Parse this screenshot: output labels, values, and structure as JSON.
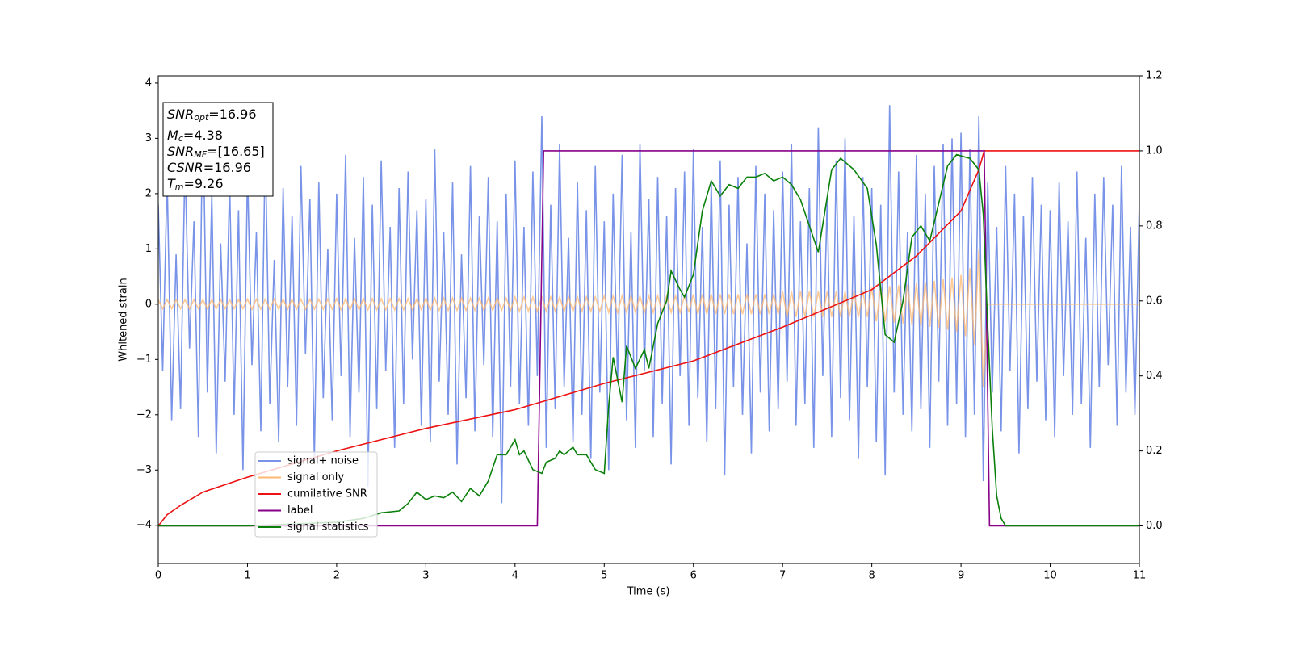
{
  "chart_data": {
    "type": "line",
    "xlabel": "Time (s)",
    "ylabel": "Whitened strain",
    "xlim": [
      0,
      11
    ],
    "ylim": [
      -4.69,
      4.13
    ],
    "y2lim": [
      -0.1,
      1.2
    ],
    "xticks": [
      0,
      1,
      2,
      3,
      4,
      5,
      6,
      7,
      8,
      9,
      10,
      11
    ],
    "yticks": [
      {
        "value": -4,
        "label": "−4"
      },
      {
        "value": -3,
        "label": "−3"
      },
      {
        "value": -2,
        "label": "−2"
      },
      {
        "value": -1,
        "label": "−1"
      },
      0,
      1,
      2,
      3,
      4
    ],
    "y2ticks": [
      {
        "value": 0,
        "label": "0.0"
      },
      0.2,
      0.4,
      0.6,
      0.8,
      {
        "value": 1,
        "label": "1.0"
      },
      1.2
    ],
    "legend": "lower left",
    "annotations": [
      {
        "symbol": "SNR",
        "sub": "opt",
        "text": "=16.96"
      },
      {
        "symbol": "M",
        "sub": "c",
        "text": "=4.38"
      },
      {
        "symbol": "SNR",
        "sub": "MF",
        "text": "=[16.65]"
      },
      {
        "symbol": "CSNR",
        "text": "=16.96"
      },
      {
        "symbol": "T",
        "sub": "m",
        "text": "=9.26"
      }
    ],
    "x": [
      0,
      0.05,
      0.1,
      0.15,
      0.2,
      0.25,
      0.3,
      0.35,
      0.4,
      0.45,
      0.5,
      0.55,
      0.6,
      0.65,
      0.7,
      0.75,
      0.8,
      0.85,
      0.9,
      0.95,
      1,
      1.05,
      1.1,
      1.15,
      1.2,
      1.25,
      1.3,
      1.35,
      1.4,
      1.45,
      1.5,
      1.55,
      1.6,
      1.65,
      1.7,
      1.75,
      1.8,
      1.85,
      1.9,
      1.95,
      2,
      2.05,
      2.1,
      2.15,
      2.2,
      2.25,
      2.3,
      2.35,
      2.4,
      2.45,
      2.5,
      2.55,
      2.6,
      2.65,
      2.7,
      2.75,
      2.8,
      2.85,
      2.9,
      2.95,
      3,
      3.05,
      3.1,
      3.15,
      3.2,
      3.25,
      3.3,
      3.35,
      3.4,
      3.45,
      3.5,
      3.55,
      3.6,
      3.65,
      3.7,
      3.75,
      3.8,
      3.85,
      3.9,
      3.95,
      4,
      4.05,
      4.1,
      4.15,
      4.2,
      4.25,
      4.3,
      4.35,
      4.4,
      4.45,
      4.5,
      4.55,
      4.6,
      4.65,
      4.7,
      4.75,
      4.8,
      4.85,
      4.9,
      4.95,
      5,
      5.05,
      5.1,
      5.15,
      5.2,
      5.25,
      5.3,
      5.35,
      5.4,
      5.45,
      5.5,
      5.55,
      5.6,
      5.65,
      5.7,
      5.75,
      5.8,
      5.85,
      5.9,
      5.95,
      6,
      6.05,
      6.1,
      6.15,
      6.2,
      6.25,
      6.3,
      6.35,
      6.4,
      6.45,
      6.5,
      6.55,
      6.6,
      6.65,
      6.7,
      6.75,
      6.8,
      6.85,
      6.9,
      6.95,
      7,
      7.05,
      7.1,
      7.15,
      7.2,
      7.25,
      7.3,
      7.35,
      7.4,
      7.45,
      7.5,
      7.55,
      7.6,
      7.65,
      7.7,
      7.75,
      7.8,
      7.85,
      7.9,
      7.95,
      8,
      8.05,
      8.1,
      8.15,
      8.2,
      8.25,
      8.3,
      8.35,
      8.4,
      8.45,
      8.5,
      8.55,
      8.6,
      8.65,
      8.7,
      8.75,
      8.8,
      8.85,
      8.9,
      8.95,
      9,
      9.05,
      9.1,
      9.15,
      9.2,
      9.25,
      9.3,
      9.35,
      9.4,
      9.45,
      9.5,
      9.55,
      9.6,
      9.65,
      9.7,
      9.75,
      9.8,
      9.85,
      9.9,
      9.95,
      10,
      10.05,
      10.1,
      10.15,
      10.2,
      10.25,
      10.3,
      10.35,
      10.4,
      10.45,
      10.5,
      10.55,
      10.6,
      10.65,
      10.7,
      10.75,
      10.8,
      10.85,
      10.9,
      10.95,
      11
    ],
    "series": [
      {
        "name": "signal+ noise",
        "color": "#7893e8",
        "values": [
          1.8,
          -1.2,
          2.3,
          -2.1,
          0.9,
          -1.9,
          2.6,
          -0.8,
          1.5,
          -2.4,
          3.6,
          -1.6,
          2.0,
          -2.7,
          1.1,
          -1.4,
          2.2,
          -2.0,
          1.7,
          -3.0,
          2.4,
          -1.1,
          1.3,
          -2.3,
          2.9,
          -1.8,
          0.8,
          -2.5,
          2.1,
          -1.5,
          1.6,
          -2.2,
          2.5,
          -0.9,
          1.9,
          -2.8,
          2.2,
          -1.7,
          1.0,
          -2.1,
          2.0,
          -1.3,
          2.7,
          -2.4,
          1.2,
          -1.6,
          2.3,
          -3.3,
          1.8,
          -1.9,
          2.6,
          -1.2,
          1.4,
          -2.6,
          2.1,
          -1.8,
          2.4,
          -1.0,
          1.7,
          -2.2,
          1.9,
          -2.5,
          2.8,
          -1.4,
          1.3,
          -2.0,
          2.2,
          -2.9,
          0.9,
          -1.7,
          2.5,
          -2.3,
          1.6,
          -1.1,
          2.3,
          -2.4,
          1.5,
          -3.6,
          2.0,
          -1.5,
          2.6,
          -1.8,
          1.4,
          -2.2,
          2.4,
          -1.3,
          3.4,
          -2.6,
          1.8,
          -1.9,
          2.9,
          -1.5,
          1.2,
          -2.5,
          2.2,
          -2.0,
          1.7,
          -2.8,
          2.5,
          -1.6,
          1.5,
          -3.0,
          2.0,
          -1.4,
          2.7,
          -2.1,
          1.3,
          -2.6,
          2.9,
          -1.2,
          1.9,
          -2.4,
          2.3,
          -1.8,
          1.6,
          -2.9,
          2.1,
          -1.3,
          2.4,
          -2.2,
          2.8,
          -1.7,
          1.4,
          -2.5,
          2.2,
          -1.9,
          2.6,
          -3.1,
          1.8,
          -1.5,
          2.3,
          -2.0,
          1.1,
          -2.7,
          2.5,
          -1.6,
          2.0,
          -2.3,
          1.7,
          -1.9,
          2.4,
          -1.4,
          2.9,
          -2.2,
          1.5,
          -1.8,
          2.1,
          -2.6,
          3.2,
          -1.3,
          1.9,
          -2.4,
          2.6,
          -1.7,
          3.0,
          -2.1,
          1.6,
          -2.8,
          2.3,
          -1.5,
          2.1,
          -2.5,
          1.8,
          -3.1,
          3.6,
          -1.6,
          2.4,
          -2.0,
          1.3,
          -2.3,
          2.7,
          -1.9,
          2.0,
          -2.6,
          2.5,
          -1.4,
          2.9,
          -2.2,
          3.0,
          -1.8,
          3.1,
          -2.4,
          2.8,
          -2.0,
          3.4,
          -3.2,
          2.2,
          -1.6,
          1.4,
          -2.3,
          2.5,
          -1.2,
          2.0,
          -2.7,
          1.6,
          -1.9,
          2.3,
          -1.4,
          1.8,
          -2.1,
          1.7,
          -2.4,
          2.2,
          -1.3,
          1.5,
          -2.0,
          2.4,
          -1.8,
          1.2,
          -2.6,
          2.0,
          -1.5,
          2.3,
          -1.1,
          1.8,
          -2.2,
          2.5,
          -1.6,
          1.4,
          -2.0,
          1.9
        ]
      },
      {
        "name": "signal only",
        "color": "#ffb870",
        "values": [
          0.08,
          -0.08,
          0.08,
          -0.08,
          0.08,
          -0.08,
          0.08,
          -0.08,
          0.08,
          -0.08,
          0.08,
          -0.08,
          0.08,
          -0.08,
          0.08,
          -0.08,
          0.08,
          -0.08,
          0.08,
          -0.08,
          0.09,
          -0.09,
          0.09,
          -0.09,
          0.09,
          -0.09,
          0.09,
          -0.09,
          0.09,
          -0.09,
          0.09,
          -0.09,
          0.09,
          -0.09,
          0.09,
          -0.09,
          0.09,
          -0.09,
          0.09,
          -0.09,
          0.1,
          -0.1,
          0.1,
          -0.1,
          0.1,
          -0.1,
          0.1,
          -0.1,
          0.1,
          -0.1,
          0.1,
          -0.1,
          0.1,
          -0.1,
          0.1,
          -0.1,
          0.1,
          -0.1,
          0.1,
          -0.1,
          0.11,
          -0.11,
          0.11,
          -0.11,
          0.11,
          -0.11,
          0.11,
          -0.11,
          0.11,
          -0.11,
          0.11,
          -0.11,
          0.11,
          -0.11,
          0.11,
          -0.11,
          0.11,
          -0.11,
          0.11,
          -0.11,
          0.13,
          -0.13,
          0.13,
          -0.13,
          0.13,
          -0.13,
          0.13,
          -0.13,
          0.13,
          -0.13,
          0.13,
          -0.13,
          0.13,
          -0.13,
          0.13,
          -0.13,
          0.13,
          -0.13,
          0.13,
          -0.13,
          0.15,
          -0.15,
          0.15,
          -0.15,
          0.15,
          -0.15,
          0.15,
          -0.15,
          0.15,
          -0.15,
          0.15,
          -0.15,
          0.15,
          -0.15,
          0.15,
          -0.15,
          0.15,
          -0.15,
          0.15,
          -0.15,
          0.18,
          -0.18,
          0.18,
          -0.18,
          0.18,
          -0.18,
          0.18,
          -0.18,
          0.18,
          -0.18,
          0.18,
          -0.18,
          0.18,
          -0.18,
          0.18,
          -0.18,
          0.18,
          -0.18,
          0.18,
          -0.18,
          0.23,
          -0.23,
          0.23,
          -0.23,
          0.23,
          -0.23,
          0.23,
          -0.23,
          0.23,
          -0.23,
          0.23,
          -0.23,
          0.23,
          -0.23,
          0.23,
          -0.23,
          0.23,
          -0.23,
          0.23,
          -0.23,
          0.3,
          -0.31,
          0.31,
          -0.32,
          0.33,
          -0.33,
          0.34,
          -0.35,
          0.36,
          -0.37,
          0.38,
          -0.39,
          0.4,
          -0.41,
          0.42,
          -0.43,
          0.45,
          -0.46,
          0.48,
          -0.5,
          0.53,
          -0.58,
          0.65,
          -0.75,
          1.0,
          -1.5,
          0,
          0,
          0,
          0,
          0,
          0,
          0,
          0,
          0,
          0,
          0,
          0,
          0,
          0,
          0,
          0,
          0,
          0,
          0,
          0,
          0,
          0,
          0,
          0,
          0,
          0,
          0,
          0,
          0,
          0,
          0,
          0,
          0,
          0,
          0
        ]
      },
      {
        "name": "cumilative SNR",
        "color": "#ee1111",
        "axis": "y2",
        "x": [
          0,
          0.1,
          0.25,
          0.5,
          1,
          2,
          3,
          4,
          5,
          6,
          7,
          7.5,
          8,
          8.5,
          9,
          9.2,
          9.26,
          11
        ],
        "values": [
          0,
          0.03,
          0.055,
          0.09,
          0.13,
          0.2,
          0.26,
          0.31,
          0.38,
          0.44,
          0.53,
          0.58,
          0.63,
          0.72,
          0.84,
          0.95,
          1,
          1
        ]
      },
      {
        "name": "label",
        "color": "#880088",
        "axis": "y2",
        "x": [
          0,
          4.25,
          4.32,
          9.26,
          9.32,
          11
        ],
        "values": [
          0,
          0,
          1,
          1,
          0,
          0
        ]
      },
      {
        "name": "signal statistics",
        "color": "#0a800a",
        "axis": "y2",
        "x": [
          0,
          1,
          2,
          2.3,
          2.5,
          2.7,
          2.8,
          2.9,
          3,
          3.1,
          3.2,
          3.3,
          3.4,
          3.5,
          3.6,
          3.7,
          3.8,
          3.9,
          4,
          4.05,
          4.1,
          4.2,
          4.3,
          4.35,
          4.45,
          4.5,
          4.55,
          4.65,
          4.7,
          4.8,
          4.9,
          5,
          5.05,
          5.1,
          5.2,
          5.25,
          5.35,
          5.45,
          5.5,
          5.6,
          5.7,
          5.75,
          5.85,
          5.9,
          6,
          6.1,
          6.2,
          6.3,
          6.4,
          6.5,
          6.6,
          6.7,
          6.8,
          6.9,
          7,
          7.1,
          7.2,
          7.3,
          7.4,
          7.55,
          7.65,
          7.8,
          7.95,
          8.05,
          8.15,
          8.25,
          8.35,
          8.45,
          8.55,
          8.65,
          8.75,
          8.85,
          8.95,
          9.1,
          9.2,
          9.25,
          9.3,
          9.35,
          9.4,
          9.45,
          9.5,
          11
        ],
        "values": [
          0,
          0,
          0.01,
          0.02,
          0.035,
          0.04,
          0.06,
          0.09,
          0.07,
          0.08,
          0.075,
          0.09,
          0.065,
          0.1,
          0.08,
          0.12,
          0.19,
          0.19,
          0.23,
          0.19,
          0.2,
          0.15,
          0.14,
          0.17,
          0.18,
          0.2,
          0.19,
          0.21,
          0.19,
          0.19,
          0.15,
          0.14,
          0.32,
          0.45,
          0.33,
          0.48,
          0.42,
          0.47,
          0.42,
          0.54,
          0.6,
          0.68,
          0.63,
          0.61,
          0.67,
          0.84,
          0.92,
          0.88,
          0.91,
          0.9,
          0.93,
          0.93,
          0.94,
          0.92,
          0.93,
          0.91,
          0.87,
          0.8,
          0.73,
          0.95,
          0.98,
          0.95,
          0.9,
          0.75,
          0.51,
          0.49,
          0.6,
          0.77,
          0.8,
          0.76,
          0.86,
          0.96,
          0.99,
          0.98,
          0.95,
          0.83,
          0.53,
          0.26,
          0.08,
          0.02,
          0,
          0
        ]
      }
    ]
  }
}
